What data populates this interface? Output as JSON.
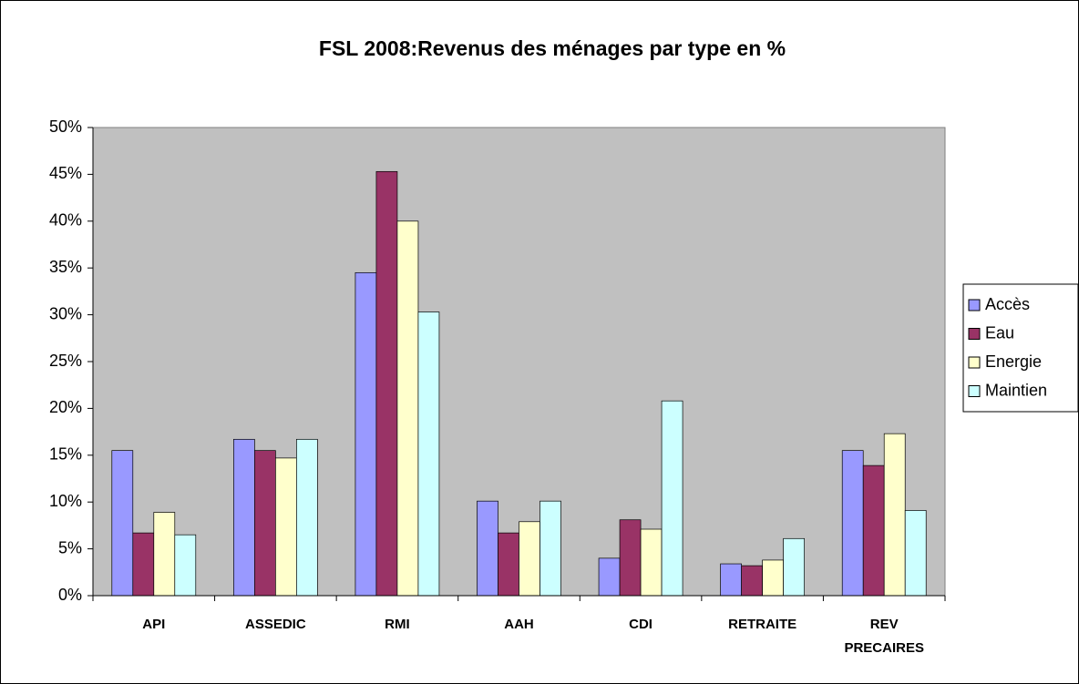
{
  "chart_data": {
    "type": "bar",
    "title": "FSL 2008:Revenus des ménages par type en %",
    "categories": [
      "API",
      "ASSEDIC",
      "RMI",
      "AAH",
      "CDI",
      "RETRAITE",
      "REV PRECAIRES"
    ],
    "series": [
      {
        "name": "Accès",
        "color": "#9999ff",
        "values": [
          15.5,
          16.7,
          34.5,
          10.1,
          4.0,
          3.4,
          15.5
        ]
      },
      {
        "name": "Eau",
        "color": "#993366",
        "values": [
          6.7,
          15.5,
          45.3,
          6.7,
          8.1,
          3.2,
          13.9
        ]
      },
      {
        "name": "Energie",
        "color": "#ffffcc",
        "values": [
          8.9,
          14.7,
          40.0,
          7.9,
          7.1,
          3.8,
          17.3
        ]
      },
      {
        "name": "Maintien",
        "color": "#ccffff",
        "values": [
          6.5,
          16.7,
          30.3,
          10.1,
          20.8,
          6.1,
          9.1
        ]
      }
    ],
    "ylim": [
      0,
      50
    ],
    "yticks": [
      {
        "value": 0,
        "label": "0%"
      },
      {
        "value": 5,
        "label": "5%"
      },
      {
        "value": 10,
        "label": "10%"
      },
      {
        "value": 15,
        "label": "15%"
      },
      {
        "value": 20,
        "label": "20%"
      },
      {
        "value": 25,
        "label": "25%"
      },
      {
        "value": 30,
        "label": "30%"
      },
      {
        "value": 35,
        "label": "35%"
      },
      {
        "value": 40,
        "label": "40%"
      },
      {
        "value": 45,
        "label": "45%"
      },
      {
        "value": 50,
        "label": "50%"
      }
    ],
    "grid": false,
    "plot_background": "#c0c0c0",
    "legend": "right"
  }
}
